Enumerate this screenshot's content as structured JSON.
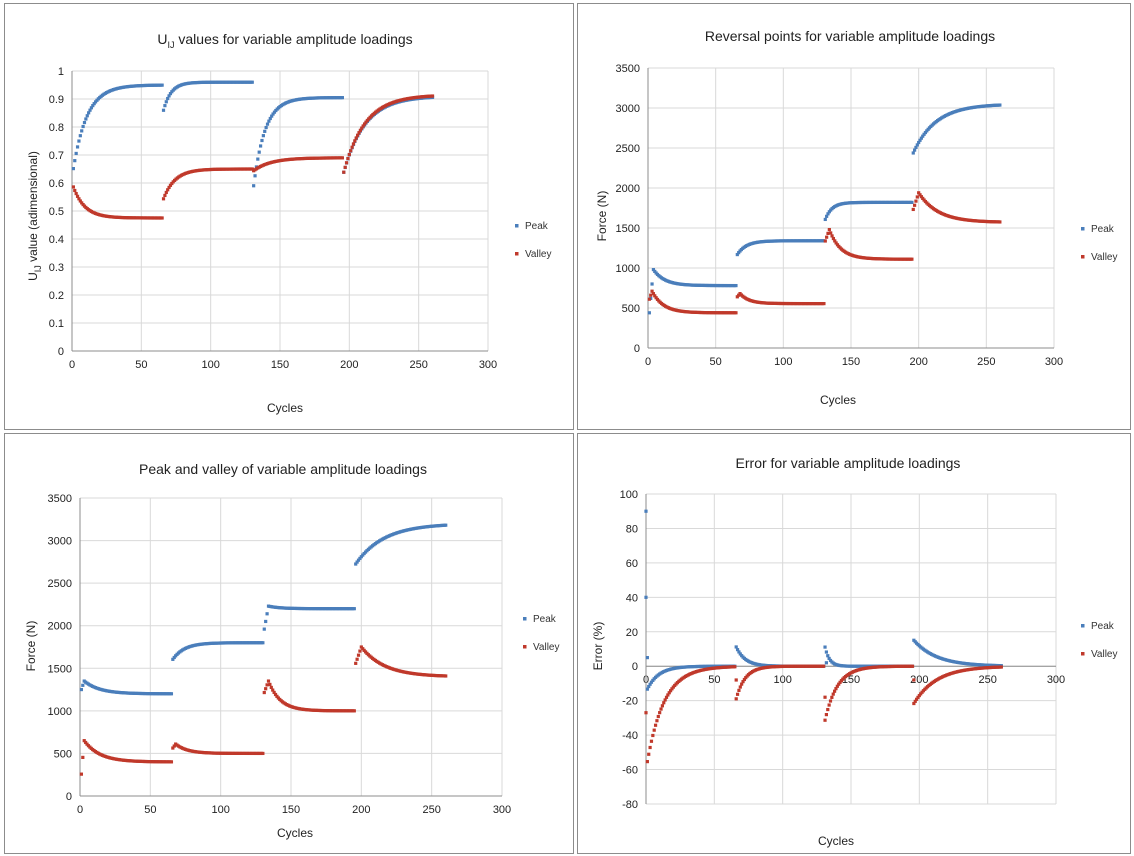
{
  "colors": {
    "peak": "#4a7ebb",
    "valley": "#c0392b",
    "grid": "#d9d9d9",
    "axis": "#8c8c8c"
  },
  "chart_data": [
    {
      "type": "scatter",
      "title_main": "U",
      "title_sub": "IJ",
      "title_rest": " values for variable amplitude loadings",
      "xlabel": "Cycles",
      "ylabel_main": "U",
      "ylabel_sub": "IJ",
      "ylabel_rest": " value (adimensional)",
      "xlim": [
        0,
        300
      ],
      "ylim": [
        0,
        1
      ],
      "xticks": [
        "0",
        "50",
        "100",
        "150",
        "200",
        "250",
        "300"
      ],
      "yticks": [
        "0",
        "0.1",
        "0.2",
        "0.3",
        "0.4",
        "0.5",
        "0.6",
        "0.7",
        "0.8",
        "0.9",
        "1"
      ],
      "grid": "vertical and horizontal",
      "legend_position": "right",
      "series": [
        {
          "name": "Peak",
          "segments": [
            {
              "x_start": 0,
              "x_end": 65,
              "start": 0.62,
              "end": 0.95,
              "rate": 0.1
            },
            {
              "x_start": 65,
              "x_end": 130,
              "start": 0.84,
              "end": 0.96,
              "rate": 0.18
            },
            {
              "x_start": 130,
              "x_end": 195,
              "start": 0.55,
              "end": 0.905,
              "rate": 0.12
            },
            {
              "x_start": 195,
              "x_end": 260,
              "start": 0.62,
              "end": 0.91,
              "rate": 0.065
            }
          ]
        },
        {
          "name": "Valley",
          "segments": [
            {
              "x_start": 0,
              "x_end": 65,
              "start": 0.6,
              "end": 0.475,
              "rate": 0.12
            },
            {
              "x_start": 65,
              "x_end": 130,
              "start": 0.53,
              "end": 0.65,
              "rate": 0.12
            },
            {
              "x_start": 130,
              "x_end": 195,
              "start": 0.64,
              "end": 0.69,
              "rate": 0.08
            },
            {
              "x_start": 195,
              "x_end": 260,
              "start": 0.62,
              "end": 0.915,
              "rate": 0.065
            }
          ]
        }
      ]
    },
    {
      "type": "scatter",
      "title": "Reversal points for variable amplitude loadings",
      "xlabel": "Cycles",
      "ylabel": "Force (N)",
      "xlim": [
        0,
        300
      ],
      "ylim": [
        0,
        3500
      ],
      "xticks": [
        "0",
        "50",
        "100",
        "150",
        "200",
        "250",
        "300"
      ],
      "yticks": [
        "0",
        "500",
        "1000",
        "1500",
        "2000",
        "2500",
        "3000",
        "3500"
      ],
      "grid": "vertical and horizontal",
      "legend_position": "right",
      "series": [
        {
          "name": "Peak",
          "segments": [
            {
              "x_start": 0,
              "x_end": 65,
              "start": 260,
              "end": 780,
              "peak": 980,
              "peak_x": 4,
              "rate": 0.12
            },
            {
              "x_start": 65,
              "x_end": 130,
              "start": 1140,
              "end": 1340,
              "rate": 0.15
            },
            {
              "x_start": 130,
              "x_end": 195,
              "start": 1560,
              "end": 1820,
              "rate": 0.2
            },
            {
              "x_start": 195,
              "x_end": 260,
              "start": 2400,
              "end": 3050,
              "rate": 0.06
            }
          ]
        },
        {
          "name": "Valley",
          "segments": [
            {
              "x_start": 0,
              "x_end": 65,
              "start": 560,
              "end": 440,
              "peak": 710,
              "peak_x": 3,
              "rate": 0.12
            },
            {
              "x_start": 65,
              "x_end": 130,
              "start": 620,
              "end": 555,
              "peak": 680,
              "peak_x": 68,
              "rate": 0.15
            },
            {
              "x_start": 130,
              "x_end": 195,
              "start": 1290,
              "end": 1110,
              "peak": 1480,
              "peak_x": 134,
              "rate": 0.12
            },
            {
              "x_start": 195,
              "x_end": 260,
              "start": 1680,
              "end": 1570,
              "peak": 1940,
              "peak_x": 200,
              "rate": 0.07
            }
          ]
        }
      ]
    },
    {
      "type": "scatter",
      "title": "Peak and valley of variable amplitude loadings",
      "xlabel": "Cycles",
      "ylabel": "Force (N)",
      "xlim": [
        0,
        300
      ],
      "ylim": [
        0,
        3500
      ],
      "xticks": [
        "0",
        "50",
        "100",
        "150",
        "200",
        "250",
        "300"
      ],
      "yticks": [
        "0",
        "500",
        "1000",
        "1500",
        "2000",
        "2500",
        "3000",
        "3500"
      ],
      "grid": "vertical and horizontal",
      "legend_position": "right",
      "series": [
        {
          "name": "Peak",
          "segments": [
            {
              "x_start": 0,
              "x_end": 65,
              "start": 1200,
              "end": 1200,
              "peak": 1350,
              "peak_x": 3,
              "rate": 0.09
            },
            {
              "x_start": 65,
              "x_end": 130,
              "start": 1580,
              "end": 1800,
              "rate": 0.12
            },
            {
              "x_start": 130,
              "x_end": 195,
              "start": 1870,
              "end": 2200,
              "peak": 2230,
              "peak_x": 134,
              "rate": 0.12
            },
            {
              "x_start": 195,
              "x_end": 260,
              "start": 2700,
              "end": 3200,
              "rate": 0.05
            }
          ]
        },
        {
          "name": "Valley",
          "segments": [
            {
              "x_start": 0,
              "x_end": 65,
              "start": 60,
              "end": 400,
              "peak": 650,
              "peak_x": 3,
              "rate": 0.09
            },
            {
              "x_start": 65,
              "x_end": 130,
              "start": 540,
              "end": 500,
              "peak": 610,
              "peak_x": 68,
              "rate": 0.12
            },
            {
              "x_start": 130,
              "x_end": 195,
              "start": 1170,
              "end": 1000,
              "peak": 1350,
              "peak_x": 134,
              "rate": 0.12
            },
            {
              "x_start": 195,
              "x_end": 260,
              "start": 1510,
              "end": 1400,
              "peak": 1750,
              "peak_x": 200,
              "rate": 0.06
            }
          ]
        }
      ]
    },
    {
      "type": "scatter",
      "title": "Error for variable amplitude loadings",
      "xlabel": "Cycles",
      "ylabel": "Error (%)",
      "xlim": [
        0,
        300
      ],
      "ylim": [
        -80,
        100
      ],
      "xticks": [
        "0",
        "50",
        "100",
        "150",
        "200",
        "250",
        "300"
      ],
      "yticks": [
        "-80",
        "-60",
        "-40",
        "-20",
        "0",
        "20",
        "40",
        "60",
        "80",
        "100"
      ],
      "grid": "vertical and horizontal",
      "legend_position": "right",
      "series": [
        {
          "name": "Peak",
          "segments": [
            {
              "x_start": 0,
              "x_end": 65,
              "start": -15,
              "end": 0,
              "rate": 0.12,
              "outliers": [
                [
                  0,
                  90
                ],
                [
                  0,
                  40
                ],
                [
                  1,
                  5
                ]
              ]
            },
            {
              "x_start": 65,
              "x_end": 130,
              "start": 13,
              "end": 0,
              "rate": 0.15
            },
            {
              "x_start": 130,
              "x_end": 195,
              "start": 15,
              "end": 0,
              "rate": 0.3,
              "outliers": [
                [
                  132,
                  2
                ]
              ]
            },
            {
              "x_start": 195,
              "x_end": 260,
              "start": 16,
              "end": 0,
              "rate": 0.06
            }
          ]
        },
        {
          "name": "Valley",
          "segments": [
            {
              "x_start": 0,
              "x_end": 65,
              "start": -60,
              "end": 0,
              "rate": 0.08,
              "outliers": [
                [
                  0,
                  -27
                ]
              ]
            },
            {
              "x_start": 65,
              "x_end": 130,
              "start": -22,
              "end": 0,
              "rate": 0.15,
              "outliers": [
                [
                  66,
                  -8
                ]
              ]
            },
            {
              "x_start": 130,
              "x_end": 195,
              "start": -35,
              "end": 0,
              "rate": 0.11,
              "outliers": [
                [
                  131,
                  -18
                ]
              ]
            },
            {
              "x_start": 195,
              "x_end": 260,
              "start": -23,
              "end": 0,
              "rate": 0.06,
              "outliers": [
                [
                  196,
                  -8
                ]
              ]
            }
          ]
        }
      ]
    }
  ]
}
